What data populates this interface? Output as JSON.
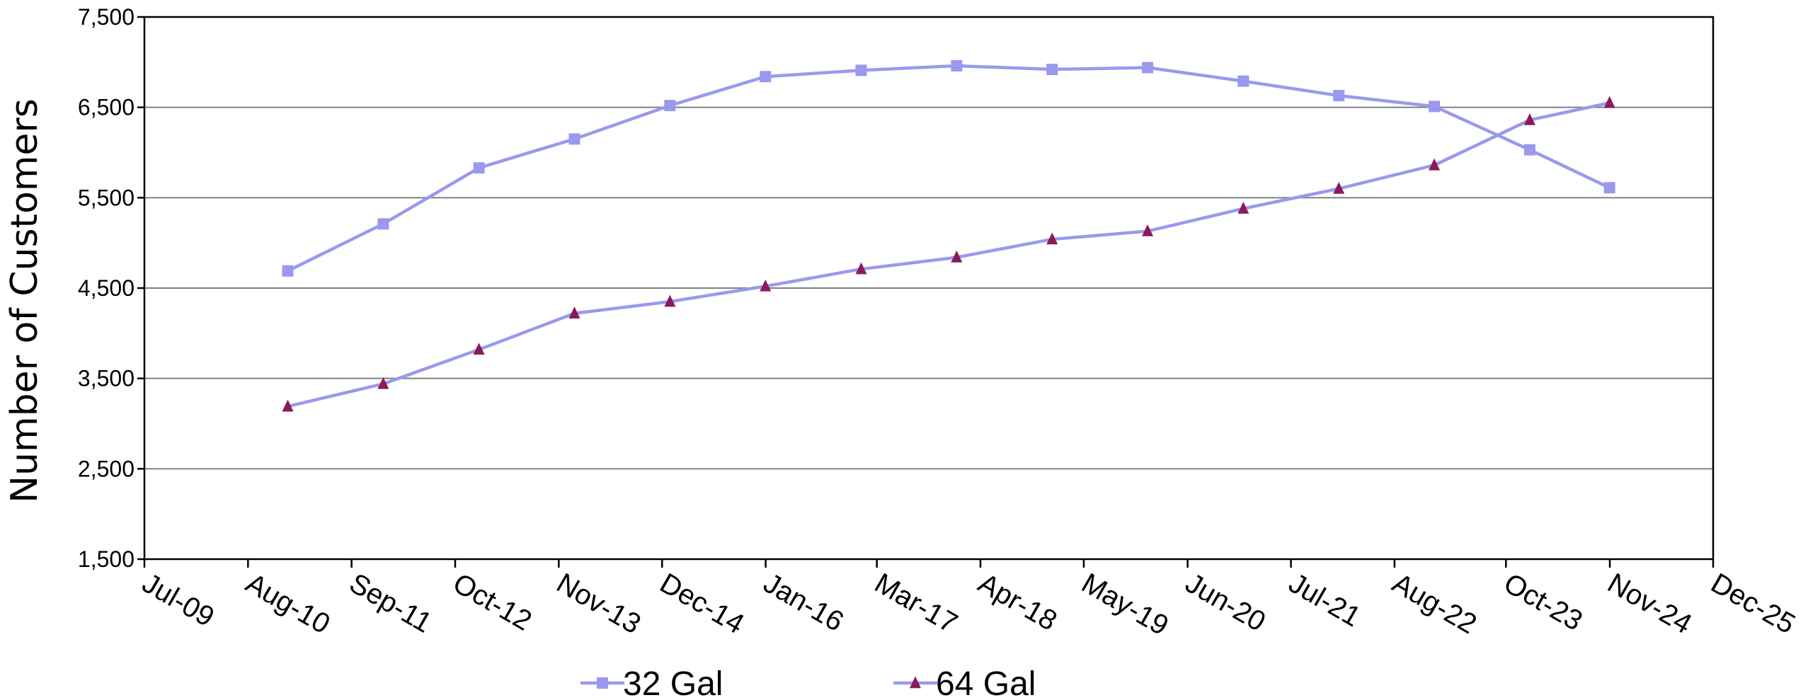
{
  "chart_data": {
    "type": "line",
    "title": "",
    "xlabel": "",
    "ylabel": "Number of Customers",
    "ylim": [
      1500,
      7500
    ],
    "yticks": [
      "1,500",
      "2,500",
      "3,500",
      "4,500",
      "5,500",
      "6,500",
      "7,500"
    ],
    "ytick_values": [
      1500,
      2500,
      3500,
      4500,
      5500,
      6500,
      7500
    ],
    "xticks": [
      "Jul-09",
      "Aug-10",
      "Sep-11",
      "Oct-12",
      "Nov-13",
      "Dec-14",
      "Jan-16",
      "Mar-17",
      "Apr-18",
      "May-19",
      "Jun-20",
      "Jul-21",
      "Aug-22",
      "Oct-23",
      "Nov-24",
      "Dec-25"
    ],
    "xtick_dates": [
      "2009-07-01",
      "2010-08-01",
      "2011-09-01",
      "2012-10-01",
      "2013-11-01",
      "2014-12-01",
      "2016-01-01",
      "2017-03-01",
      "2018-04-01",
      "2019-05-01",
      "2020-06-01",
      "2021-07-01",
      "2022-08-01",
      "2023-10-01",
      "2024-11-01",
      "2025-12-01"
    ],
    "grid": "horizontal",
    "legend": "bottom",
    "x": [
      "2010-12-31",
      "2011-12-31",
      "2012-12-31",
      "2013-12-31",
      "2014-12-31",
      "2015-12-31",
      "2016-12-31",
      "2017-12-31",
      "2018-12-31",
      "2019-12-31",
      "2020-12-31",
      "2021-12-31",
      "2022-12-31",
      "2023-12-31",
      "2024-10-31"
    ],
    "series": [
      {
        "name": "32 Gal",
        "marker": "square",
        "color": "#9999ee",
        "values": [
          4690,
          5210,
          5830,
          6150,
          6520,
          6840,
          6910,
          6960,
          6920,
          6940,
          6790,
          6630,
          6510,
          6030,
          5610
        ]
      },
      {
        "name": "64 Gal",
        "marker": "triangle",
        "color": "#9999ee",
        "marker_color": "#8b1a5a",
        "values": [
          3190,
          3440,
          3820,
          4220,
          4350,
          4520,
          4710,
          4840,
          5040,
          5130,
          5380,
          5600,
          5860,
          6360,
          6550
        ]
      }
    ]
  }
}
